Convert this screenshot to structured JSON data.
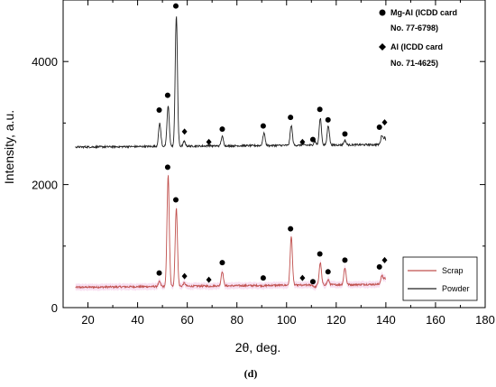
{
  "chart_data": {
    "type": "line",
    "xlabel": "2θ, deg.",
    "ylabel": "Intensity, a.u.",
    "caption": "(d)",
    "xlim": [
      10,
      180
    ],
    "ylim": [
      0,
      5000
    ],
    "xticks": [
      "20",
      "40",
      "60",
      "80",
      "100",
      "120",
      "140",
      "160",
      "180"
    ],
    "yticks": [
      "0",
      "2000",
      "4000"
    ],
    "marker_legend": [
      {
        "symbol": "circle",
        "lines": [
          "Mg-Al (ICDD card",
          "No. 77-6798)"
        ]
      },
      {
        "symbol": "diamond",
        "lines": [
          "Al (ICDD card",
          "No. 71-4625)"
        ]
      }
    ],
    "series": [
      {
        "name": "Scrap",
        "color": "#c0504d",
        "shade_color": "#f2c6e8",
        "baseline": 330,
        "baseline_end": 380,
        "peaks": [
          [
            48.8,
            420
          ],
          [
            52.3,
            2150
          ],
          [
            55.6,
            1610
          ],
          [
            58.8,
            400
          ],
          [
            68.8,
            345
          ],
          [
            74.1,
            590
          ],
          [
            90.9,
            350
          ],
          [
            101.9,
            1150
          ],
          [
            106.5,
            360
          ],
          [
            111.4,
            330
          ],
          [
            113.6,
            730
          ],
          [
            116.8,
            450
          ],
          [
            123.5,
            650
          ],
          [
            138.4,
            520
          ],
          [
            139.6,
            480
          ]
        ],
        "markers": [
          {
            "x": 48.7,
            "y": 430,
            "symbol": "circle"
          },
          {
            "x": 52.1,
            "y": 2150,
            "symbol": "circle"
          },
          {
            "x": 55.4,
            "y": 1620,
            "symbol": "circle"
          },
          {
            "x": 58.9,
            "y": 380,
            "symbol": "diamond"
          },
          {
            "x": 68.7,
            "y": 320,
            "symbol": "diamond"
          },
          {
            "x": 74.1,
            "y": 600,
            "symbol": "circle"
          },
          {
            "x": 90.6,
            "y": 350,
            "symbol": "circle"
          },
          {
            "x": 101.6,
            "y": 1150,
            "symbol": "circle"
          },
          {
            "x": 106.4,
            "y": 350,
            "symbol": "diamond"
          },
          {
            "x": 110.6,
            "y": 290,
            "symbol": "circle"
          },
          {
            "x": 113.4,
            "y": 740,
            "symbol": "circle"
          },
          {
            "x": 116.7,
            "y": 450,
            "symbol": "circle"
          },
          {
            "x": 123.5,
            "y": 640,
            "symbol": "circle"
          },
          {
            "x": 137.4,
            "y": 530,
            "symbol": "circle"
          },
          {
            "x": 139.5,
            "y": 640,
            "symbol": "diamond"
          }
        ]
      },
      {
        "name": "Powder",
        "color": "#222222",
        "baseline": 2610,
        "baseline_end": 2650,
        "peaks": [
          [
            48.9,
            3000
          ],
          [
            52.3,
            3280
          ],
          [
            55.6,
            4740
          ],
          [
            58.8,
            2700
          ],
          [
            68.8,
            2640
          ],
          [
            74.1,
            2780
          ],
          [
            90.9,
            2840
          ],
          [
            101.9,
            2960
          ],
          [
            106.5,
            2650
          ],
          [
            111.4,
            2700
          ],
          [
            113.6,
            3080
          ],
          [
            116.8,
            2960
          ],
          [
            123.5,
            2720
          ],
          [
            138.4,
            2800
          ],
          [
            139.6,
            2760
          ]
        ],
        "markers": [
          {
            "x": 48.7,
            "y": 3080,
            "symbol": "circle"
          },
          {
            "x": 52.1,
            "y": 3320,
            "symbol": "circle"
          },
          {
            "x": 55.4,
            "y": 4770,
            "symbol": "circle"
          },
          {
            "x": 58.9,
            "y": 2730,
            "symbol": "diamond"
          },
          {
            "x": 68.7,
            "y": 2560,
            "symbol": "diamond"
          },
          {
            "x": 74.1,
            "y": 2770,
            "symbol": "circle"
          },
          {
            "x": 90.6,
            "y": 2820,
            "symbol": "circle"
          },
          {
            "x": 101.6,
            "y": 2960,
            "symbol": "circle"
          },
          {
            "x": 106.4,
            "y": 2560,
            "symbol": "diamond"
          },
          {
            "x": 110.6,
            "y": 2600,
            "symbol": "circle"
          },
          {
            "x": 113.4,
            "y": 3090,
            "symbol": "circle"
          },
          {
            "x": 116.7,
            "y": 2920,
            "symbol": "circle"
          },
          {
            "x": 123.5,
            "y": 2690,
            "symbol": "circle"
          },
          {
            "x": 137.4,
            "y": 2800,
            "symbol": "circle"
          },
          {
            "x": 139.5,
            "y": 2880,
            "symbol": "diamond"
          }
        ]
      }
    ],
    "legend": {
      "position": "bottom-right",
      "entries": [
        "Scrap",
        "Powder"
      ]
    }
  }
}
